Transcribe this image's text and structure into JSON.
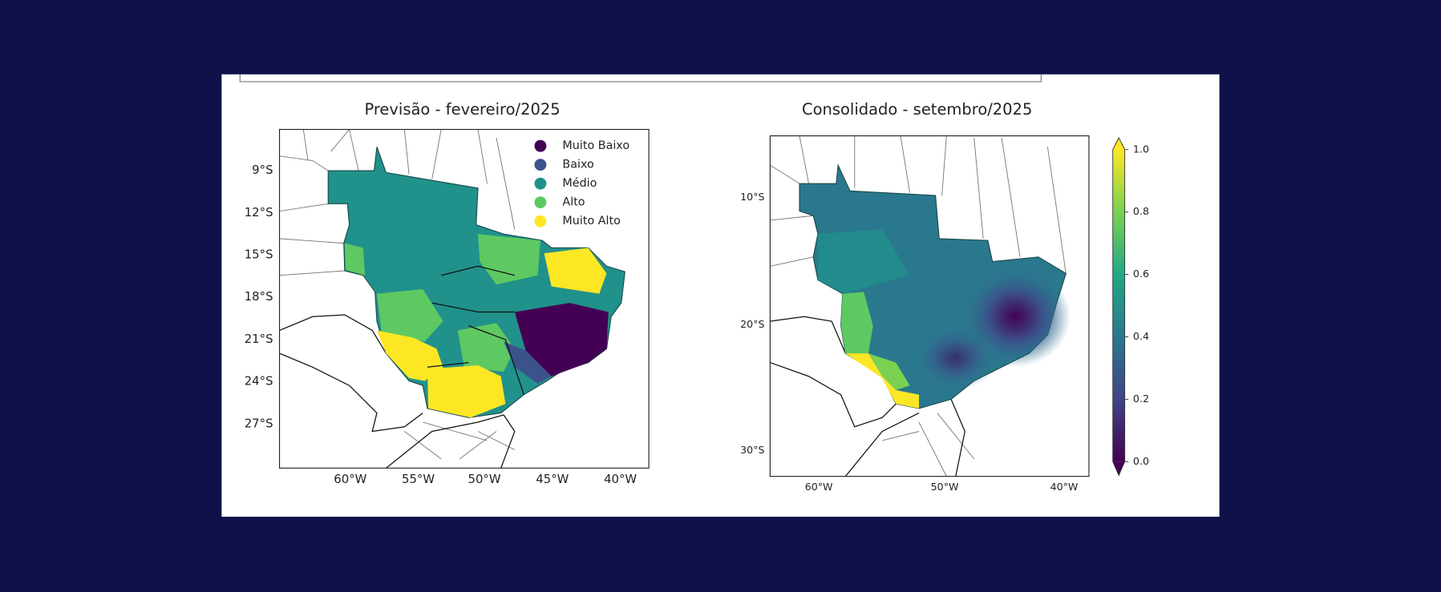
{
  "panels": [
    {
      "title": "Previsão -  fevereiro/2025",
      "y_labels": [
        "9°S",
        "12°S",
        "15°S",
        "18°S",
        "21°S",
        "24°S",
        "27°S"
      ],
      "x_labels": [
        "60°W",
        "55°W",
        "50°W",
        "45°W",
        "40°W"
      ],
      "legend": [
        {
          "label": "Muito Baixo",
          "color": "#440154"
        },
        {
          "label": "Baixo",
          "color": "#3b528b"
        },
        {
          "label": "Médio",
          "color": "#21918c"
        },
        {
          "label": "Alto",
          "color": "#5ec962"
        },
        {
          "label": "Muito Alto",
          "color": "#fde725"
        }
      ]
    },
    {
      "title": "Consolidado - setembro/2025",
      "y_labels": [
        "10°S",
        "20°S",
        "30°S"
      ],
      "x_labels": [
        "60°W",
        "50°W",
        "40°W"
      ],
      "colorbar": {
        "ticks": [
          "1.0",
          "0.8",
          "0.6",
          "0.4",
          "0.2",
          "0.0"
        ],
        "colors": [
          "#fde725",
          "#7ad151",
          "#22a884",
          "#2a788e",
          "#414487",
          "#440154"
        ]
      }
    }
  ]
}
